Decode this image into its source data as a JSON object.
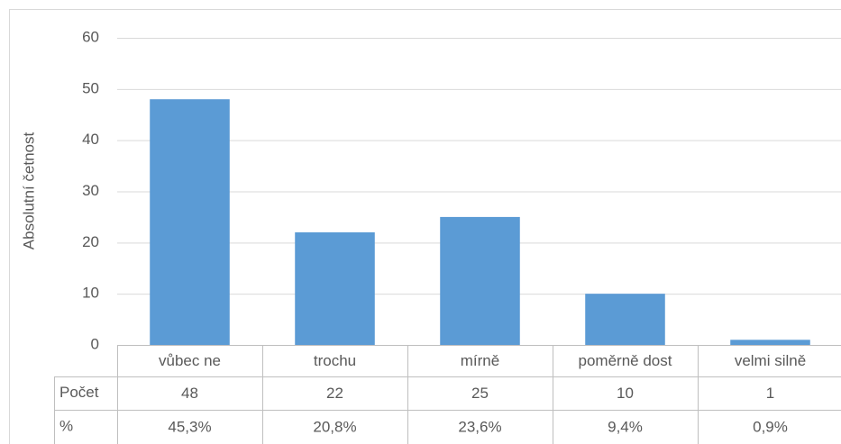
{
  "chart_data": {
    "type": "bar",
    "y_axis_label": "Absolutní četnost",
    "categories": [
      "vůbec ne",
      "trochu",
      "mírně",
      "poměrně dost",
      "velmi silně"
    ],
    "series": [
      {
        "name": "Počet",
        "color": "#5b9bd5",
        "values": [
          48,
          22,
          25,
          10,
          1
        ]
      }
    ],
    "percent_row": {
      "name": "%",
      "values": [
        45.3,
        20.8,
        23.6,
        9.4,
        0.9
      ],
      "value_labels": [
        "45,3%",
        "20,8%",
        "23,6%",
        "9,4%",
        "0,9%"
      ]
    },
    "ylim": [
      0,
      60
    ],
    "yticks": [
      0,
      10,
      20,
      30,
      40,
      50,
      60
    ],
    "grid": true
  }
}
